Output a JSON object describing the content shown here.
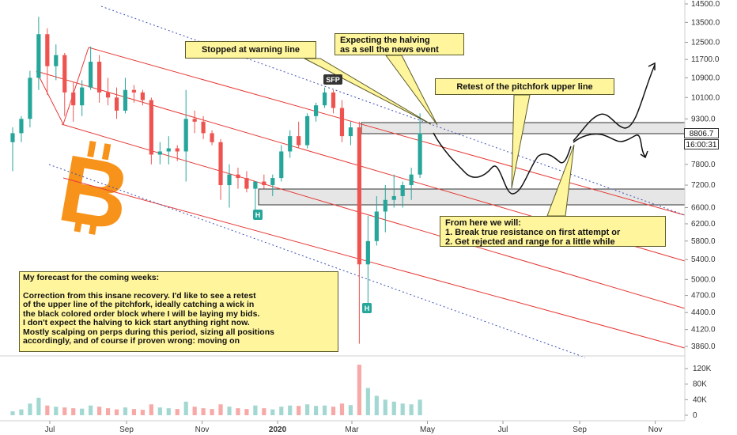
{
  "chart_data": {
    "type": "candlestick",
    "symbol_logo": "bitcoin",
    "colors": {
      "up": "#26a69a",
      "down": "#ef5350",
      "volume_up": "#a3d8d2",
      "volume_down": "#f7a9a7",
      "channel": "#e53935",
      "dotted": "#3f51b5",
      "callout_fill": "#fff59d",
      "logo": "#f7931a"
    },
    "price_axis": {
      "scale": "log",
      "ticks": [
        "14500.0",
        "13500.0",
        "12500.0",
        "11700.0",
        "10900.0",
        "10100.0",
        "9300.0",
        "8806.7",
        "7800.0",
        "7200.0",
        "6600.0",
        "6200.0",
        "5800.0",
        "5400.0",
        "5000.0",
        "4700.0",
        "4400.0",
        "4120.0",
        "3860.0"
      ],
      "current_price": "8806.7",
      "countdown": "16:00:31"
    },
    "volume_axis": {
      "ticks": [
        "120K",
        "80K",
        "40K",
        "0"
      ]
    },
    "time_axis": {
      "ticks": [
        "Jul",
        "Sep",
        "Nov",
        "2020",
        "Mar",
        "May",
        "Jul",
        "Sep",
        "Nov"
      ]
    },
    "candles_weekly_approx": [
      {
        "date": "2019-06-01",
        "open": 8500,
        "high": 9000,
        "low": 7600,
        "close": 8800
      },
      {
        "date": "2019-06-08",
        "open": 8800,
        "high": 9400,
        "low": 8500,
        "close": 9300
      },
      {
        "date": "2019-06-15",
        "open": 9300,
        "high": 11200,
        "low": 9000,
        "close": 10900
      },
      {
        "date": "2019-06-22",
        "open": 10900,
        "high": 13800,
        "low": 10400,
        "close": 12900
      },
      {
        "date": "2019-06-29",
        "open": 12900,
        "high": 13200,
        "low": 10200,
        "close": 11400
      },
      {
        "date": "2019-07-06",
        "open": 11400,
        "high": 12400,
        "low": 10800,
        "close": 11900
      },
      {
        "date": "2019-07-13",
        "open": 11900,
        "high": 12000,
        "low": 9400,
        "close": 10300
      },
      {
        "date": "2019-07-20",
        "open": 10300,
        "high": 10700,
        "low": 9200,
        "close": 9800
      },
      {
        "date": "2019-07-27",
        "open": 9800,
        "high": 10800,
        "low": 9400,
        "close": 10500
      },
      {
        "date": "2019-08-03",
        "open": 10500,
        "high": 12300,
        "low": 10400,
        "close": 11600
      },
      {
        "date": "2019-08-10",
        "open": 11600,
        "high": 11900,
        "low": 9900,
        "close": 10300
      },
      {
        "date": "2019-08-17",
        "open": 10300,
        "high": 10900,
        "low": 9800,
        "close": 10100
      },
      {
        "date": "2019-08-24",
        "open": 10100,
        "high": 10500,
        "low": 9300,
        "close": 9600
      },
      {
        "date": "2019-08-31",
        "open": 9600,
        "high": 10900,
        "low": 9500,
        "close": 10400
      },
      {
        "date": "2019-09-07",
        "open": 10400,
        "high": 10600,
        "low": 9900,
        "close": 10300
      },
      {
        "date": "2019-09-14",
        "open": 10300,
        "high": 10400,
        "low": 9800,
        "close": 10000
      },
      {
        "date": "2019-09-21",
        "open": 10000,
        "high": 10100,
        "low": 7800,
        "close": 8100
      },
      {
        "date": "2019-09-28",
        "open": 8100,
        "high": 8500,
        "low": 7800,
        "close": 8200
      },
      {
        "date": "2019-10-05",
        "open": 8200,
        "high": 8700,
        "low": 7800,
        "close": 8300
      },
      {
        "date": "2019-10-12",
        "open": 8300,
        "high": 8400,
        "low": 7900,
        "close": 8200
      },
      {
        "date": "2019-10-19",
        "open": 8200,
        "high": 10400,
        "low": 7300,
        "close": 9300
      },
      {
        "date": "2019-10-26",
        "open": 9300,
        "high": 9600,
        "low": 8800,
        "close": 9200
      },
      {
        "date": "2019-11-02",
        "open": 9200,
        "high": 9400,
        "low": 8600,
        "close": 8800
      },
      {
        "date": "2019-11-09",
        "open": 8800,
        "high": 8900,
        "low": 8400,
        "close": 8500
      },
      {
        "date": "2019-11-16",
        "open": 8500,
        "high": 8600,
        "low": 6800,
        "close": 7200
      },
      {
        "date": "2019-11-23",
        "open": 7200,
        "high": 7800,
        "low": 6600,
        "close": 7500
      },
      {
        "date": "2019-11-30",
        "open": 7500,
        "high": 7700,
        "low": 7100,
        "close": 7400
      },
      {
        "date": "2019-12-07",
        "open": 7400,
        "high": 7600,
        "low": 7000,
        "close": 7100
      },
      {
        "date": "2019-12-14",
        "open": 7100,
        "high": 7200,
        "low": 6450,
        "close": 7300
      },
      {
        "date": "2019-12-21",
        "open": 7300,
        "high": 7500,
        "low": 7100,
        "close": 7200
      },
      {
        "date": "2019-12-28",
        "open": 7200,
        "high": 7500,
        "low": 6900,
        "close": 7400
      },
      {
        "date": "2020-01-04",
        "open": 7400,
        "high": 8400,
        "low": 7300,
        "close": 8200
      },
      {
        "date": "2020-01-11",
        "open": 8200,
        "high": 8900,
        "low": 8000,
        "close": 8700
      },
      {
        "date": "2020-01-18",
        "open": 8700,
        "high": 9200,
        "low": 8300,
        "close": 8400
      },
      {
        "date": "2020-01-25",
        "open": 8400,
        "high": 9500,
        "low": 8300,
        "close": 9400
      },
      {
        "date": "2020-02-01",
        "open": 9400,
        "high": 9900,
        "low": 9200,
        "close": 9800
      },
      {
        "date": "2020-02-08",
        "open": 9800,
        "high": 10500,
        "low": 9700,
        "close": 10300
      },
      {
        "date": "2020-02-15",
        "open": 10300,
        "high": 10400,
        "low": 9500,
        "close": 9700
      },
      {
        "date": "2020-02-22",
        "open": 9700,
        "high": 10000,
        "low": 8500,
        "close": 8700
      },
      {
        "date": "2020-02-29",
        "open": 8700,
        "high": 9200,
        "low": 8400,
        "close": 9000
      },
      {
        "date": "2020-03-07",
        "open": 9000,
        "high": 9200,
        "low": 3900,
        "close": 5300
      },
      {
        "date": "2020-03-14",
        "open": 5300,
        "high": 6400,
        "low": 4500,
        "close": 5800
      },
      {
        "date": "2020-03-21",
        "open": 5800,
        "high": 6900,
        "low": 5700,
        "close": 6500
      },
      {
        "date": "2020-03-28",
        "open": 6500,
        "high": 7200,
        "low": 6000,
        "close": 6800
      },
      {
        "date": "2020-04-04",
        "open": 6800,
        "high": 7500,
        "low": 6600,
        "close": 6900
      },
      {
        "date": "2020-04-11",
        "open": 6900,
        "high": 7300,
        "low": 6600,
        "close": 7200
      },
      {
        "date": "2020-04-18",
        "open": 7200,
        "high": 7700,
        "low": 6800,
        "close": 7500
      },
      {
        "date": "2020-04-25",
        "open": 7500,
        "high": 9500,
        "low": 7400,
        "close": 8800
      }
    ],
    "volume_approx_k": [
      10,
      15,
      30,
      45,
      25,
      22,
      20,
      18,
      17,
      25,
      22,
      18,
      15,
      20,
      16,
      14,
      28,
      20,
      18,
      16,
      35,
      22,
      18,
      16,
      28,
      22,
      18,
      16,
      25,
      18,
      15,
      22,
      25,
      24,
      28,
      24,
      25,
      22,
      30,
      26,
      130,
      70,
      50,
      40,
      35,
      30,
      28,
      40
    ],
    "annotations": [
      {
        "id": "stopped",
        "text": "Stopped at warning line"
      },
      {
        "id": "halving",
        "lines": [
          "Expecting the halving",
          "as a sell the news event"
        ]
      },
      {
        "id": "retest",
        "text": "Retest of the pitchfork upper line"
      },
      {
        "id": "from_here",
        "lines": [
          "From here we will:",
          "1. Break true resistance on first attempt or",
          "2. Get rejected and range for a little while"
        ]
      },
      {
        "id": "forecast",
        "lines": [
          "My forecast for the coming weeks:",
          "",
          "Correction from this insane recovery. I'd like to see a retest",
          "of the upper line of the pitchfork, ideally catching a wick in",
          "the black colored order block where I will be laying my bids.",
          "I don't expect the halving to kick start anything right now.",
          "Mostly scalping on perps during this period, sizing all positions",
          "accordingly, and of course if proven wrong: moving on"
        ]
      }
    ],
    "markers": {
      "sfp": "SFP",
      "h": "H"
    }
  }
}
